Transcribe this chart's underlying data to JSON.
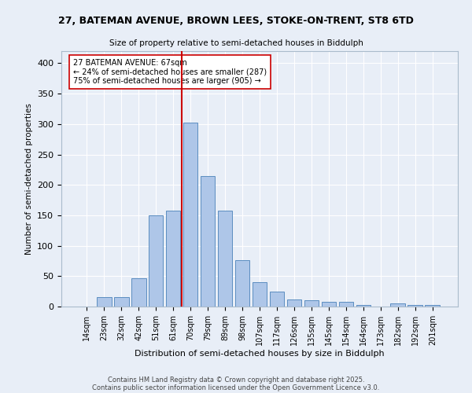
{
  "title_line1": "27, BATEMAN AVENUE, BROWN LEES, STOKE-ON-TRENT, ST8 6TD",
  "title_line2": "Size of property relative to semi-detached houses in Biddulph",
  "xlabel": "Distribution of semi-detached houses by size in Biddulph",
  "ylabel": "Number of semi-detached properties",
  "categories": [
    "14sqm",
    "23sqm",
    "32sqm",
    "42sqm",
    "51sqm",
    "61sqm",
    "70sqm",
    "79sqm",
    "89sqm",
    "98sqm",
    "107sqm",
    "117sqm",
    "126sqm",
    "135sqm",
    "145sqm",
    "154sqm",
    "164sqm",
    "173sqm",
    "182sqm",
    "192sqm",
    "201sqm"
  ],
  "values": [
    0,
    15,
    15,
    46,
    150,
    158,
    302,
    215,
    158,
    76,
    40,
    24,
    12,
    10,
    8,
    8,
    3,
    0,
    5,
    3,
    3
  ],
  "bar_color": "#aec6e8",
  "bar_edge_color": "#5b8dc0",
  "vline_color": "#cc0000",
  "annotation_title": "27 BATEMAN AVENUE: 67sqm",
  "annotation_line2": "← 24% of semi-detached houses are smaller (287)",
  "annotation_line3": "75% of semi-detached houses are larger (905) →",
  "bg_color": "#e8eef7",
  "grid_color": "#ffffff",
  "footnote_line1": "Contains HM Land Registry data © Crown copyright and database right 2025.",
  "footnote_line2": "Contains public sector information licensed under the Open Government Licence v3.0.",
  "ylim": [
    0,
    420
  ],
  "bar_width": 0.85
}
